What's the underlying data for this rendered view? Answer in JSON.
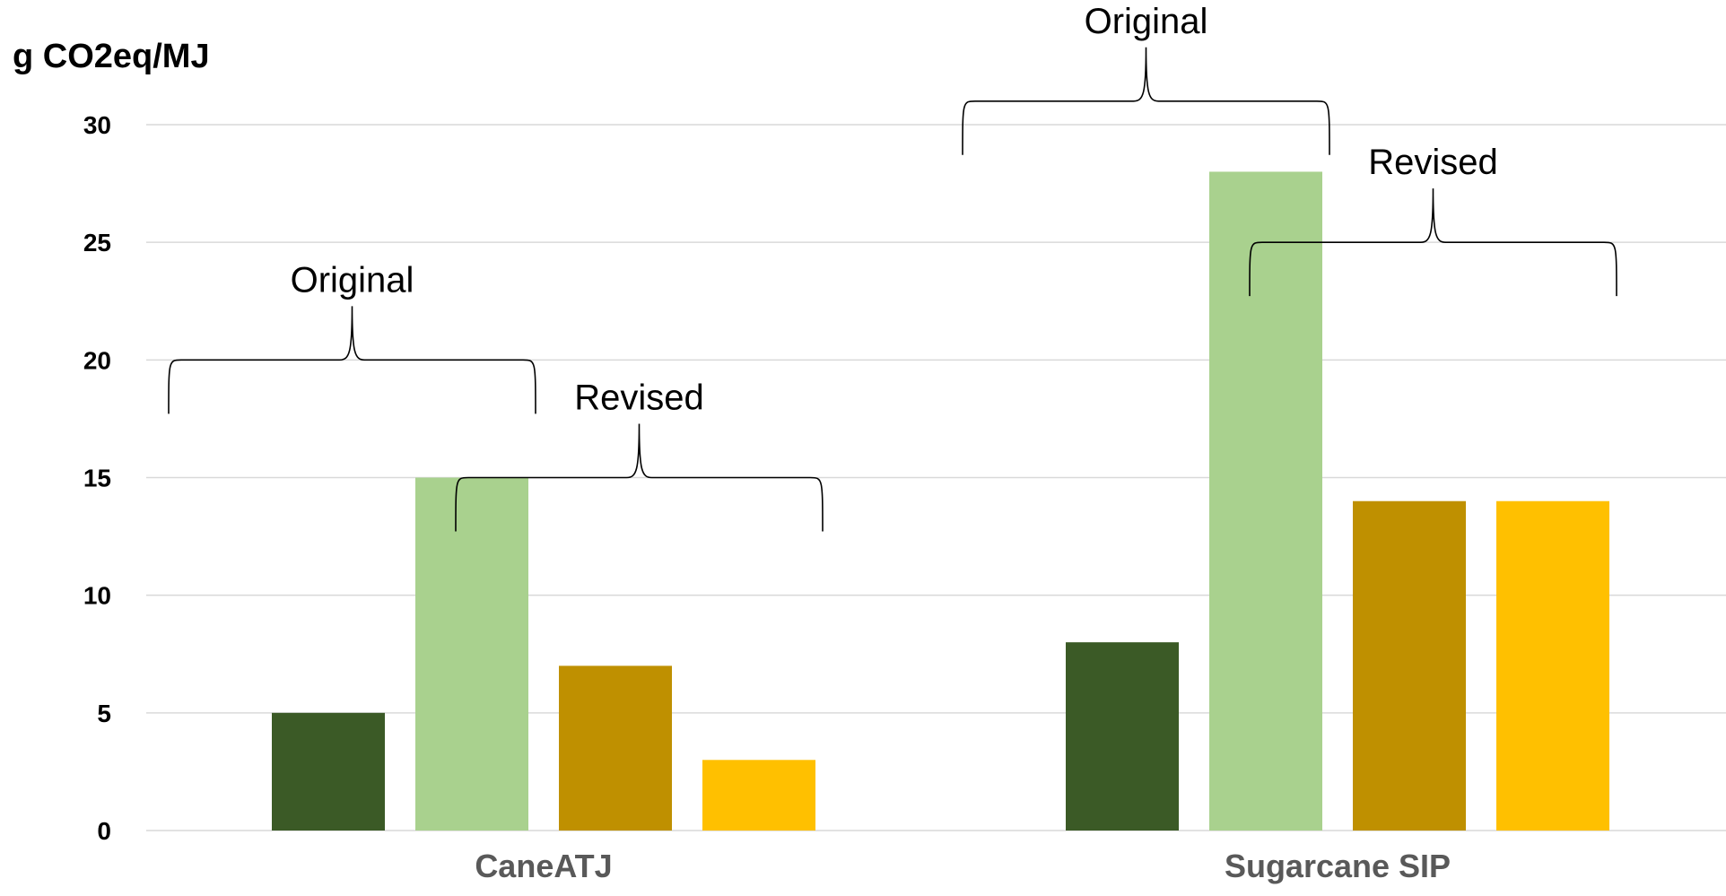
{
  "chart_data": {
    "type": "bar",
    "ylabel": "g CO2eq/MJ",
    "ylim": [
      0,
      30
    ],
    "yticks": [
      0,
      5,
      10,
      15,
      20,
      25,
      30
    ],
    "grid": true,
    "categories": [
      "CaneATJ",
      "Sugarcane SIP"
    ],
    "series": [
      {
        "values": [
          5,
          8
        ],
        "color": "#3b5a26"
      },
      {
        "values": [
          15,
          28
        ],
        "color": "#a9d18e"
      },
      {
        "values": [
          7,
          14
        ],
        "color": "#bf9000"
      },
      {
        "values": [
          3,
          14
        ],
        "color": "#ffc000"
      }
    ],
    "annotations": [
      {
        "text": "Original",
        "category": 0,
        "series": [
          0,
          1
        ],
        "value": 20
      },
      {
        "text": "Revised",
        "category": 0,
        "series": [
          2,
          3
        ],
        "value": 15
      },
      {
        "text": "Original",
        "category": 1,
        "series": [
          0,
          1
        ],
        "value": 31
      },
      {
        "text": "Revised",
        "category": 1,
        "series": [
          2,
          3
        ],
        "value": 25
      }
    ]
  }
}
